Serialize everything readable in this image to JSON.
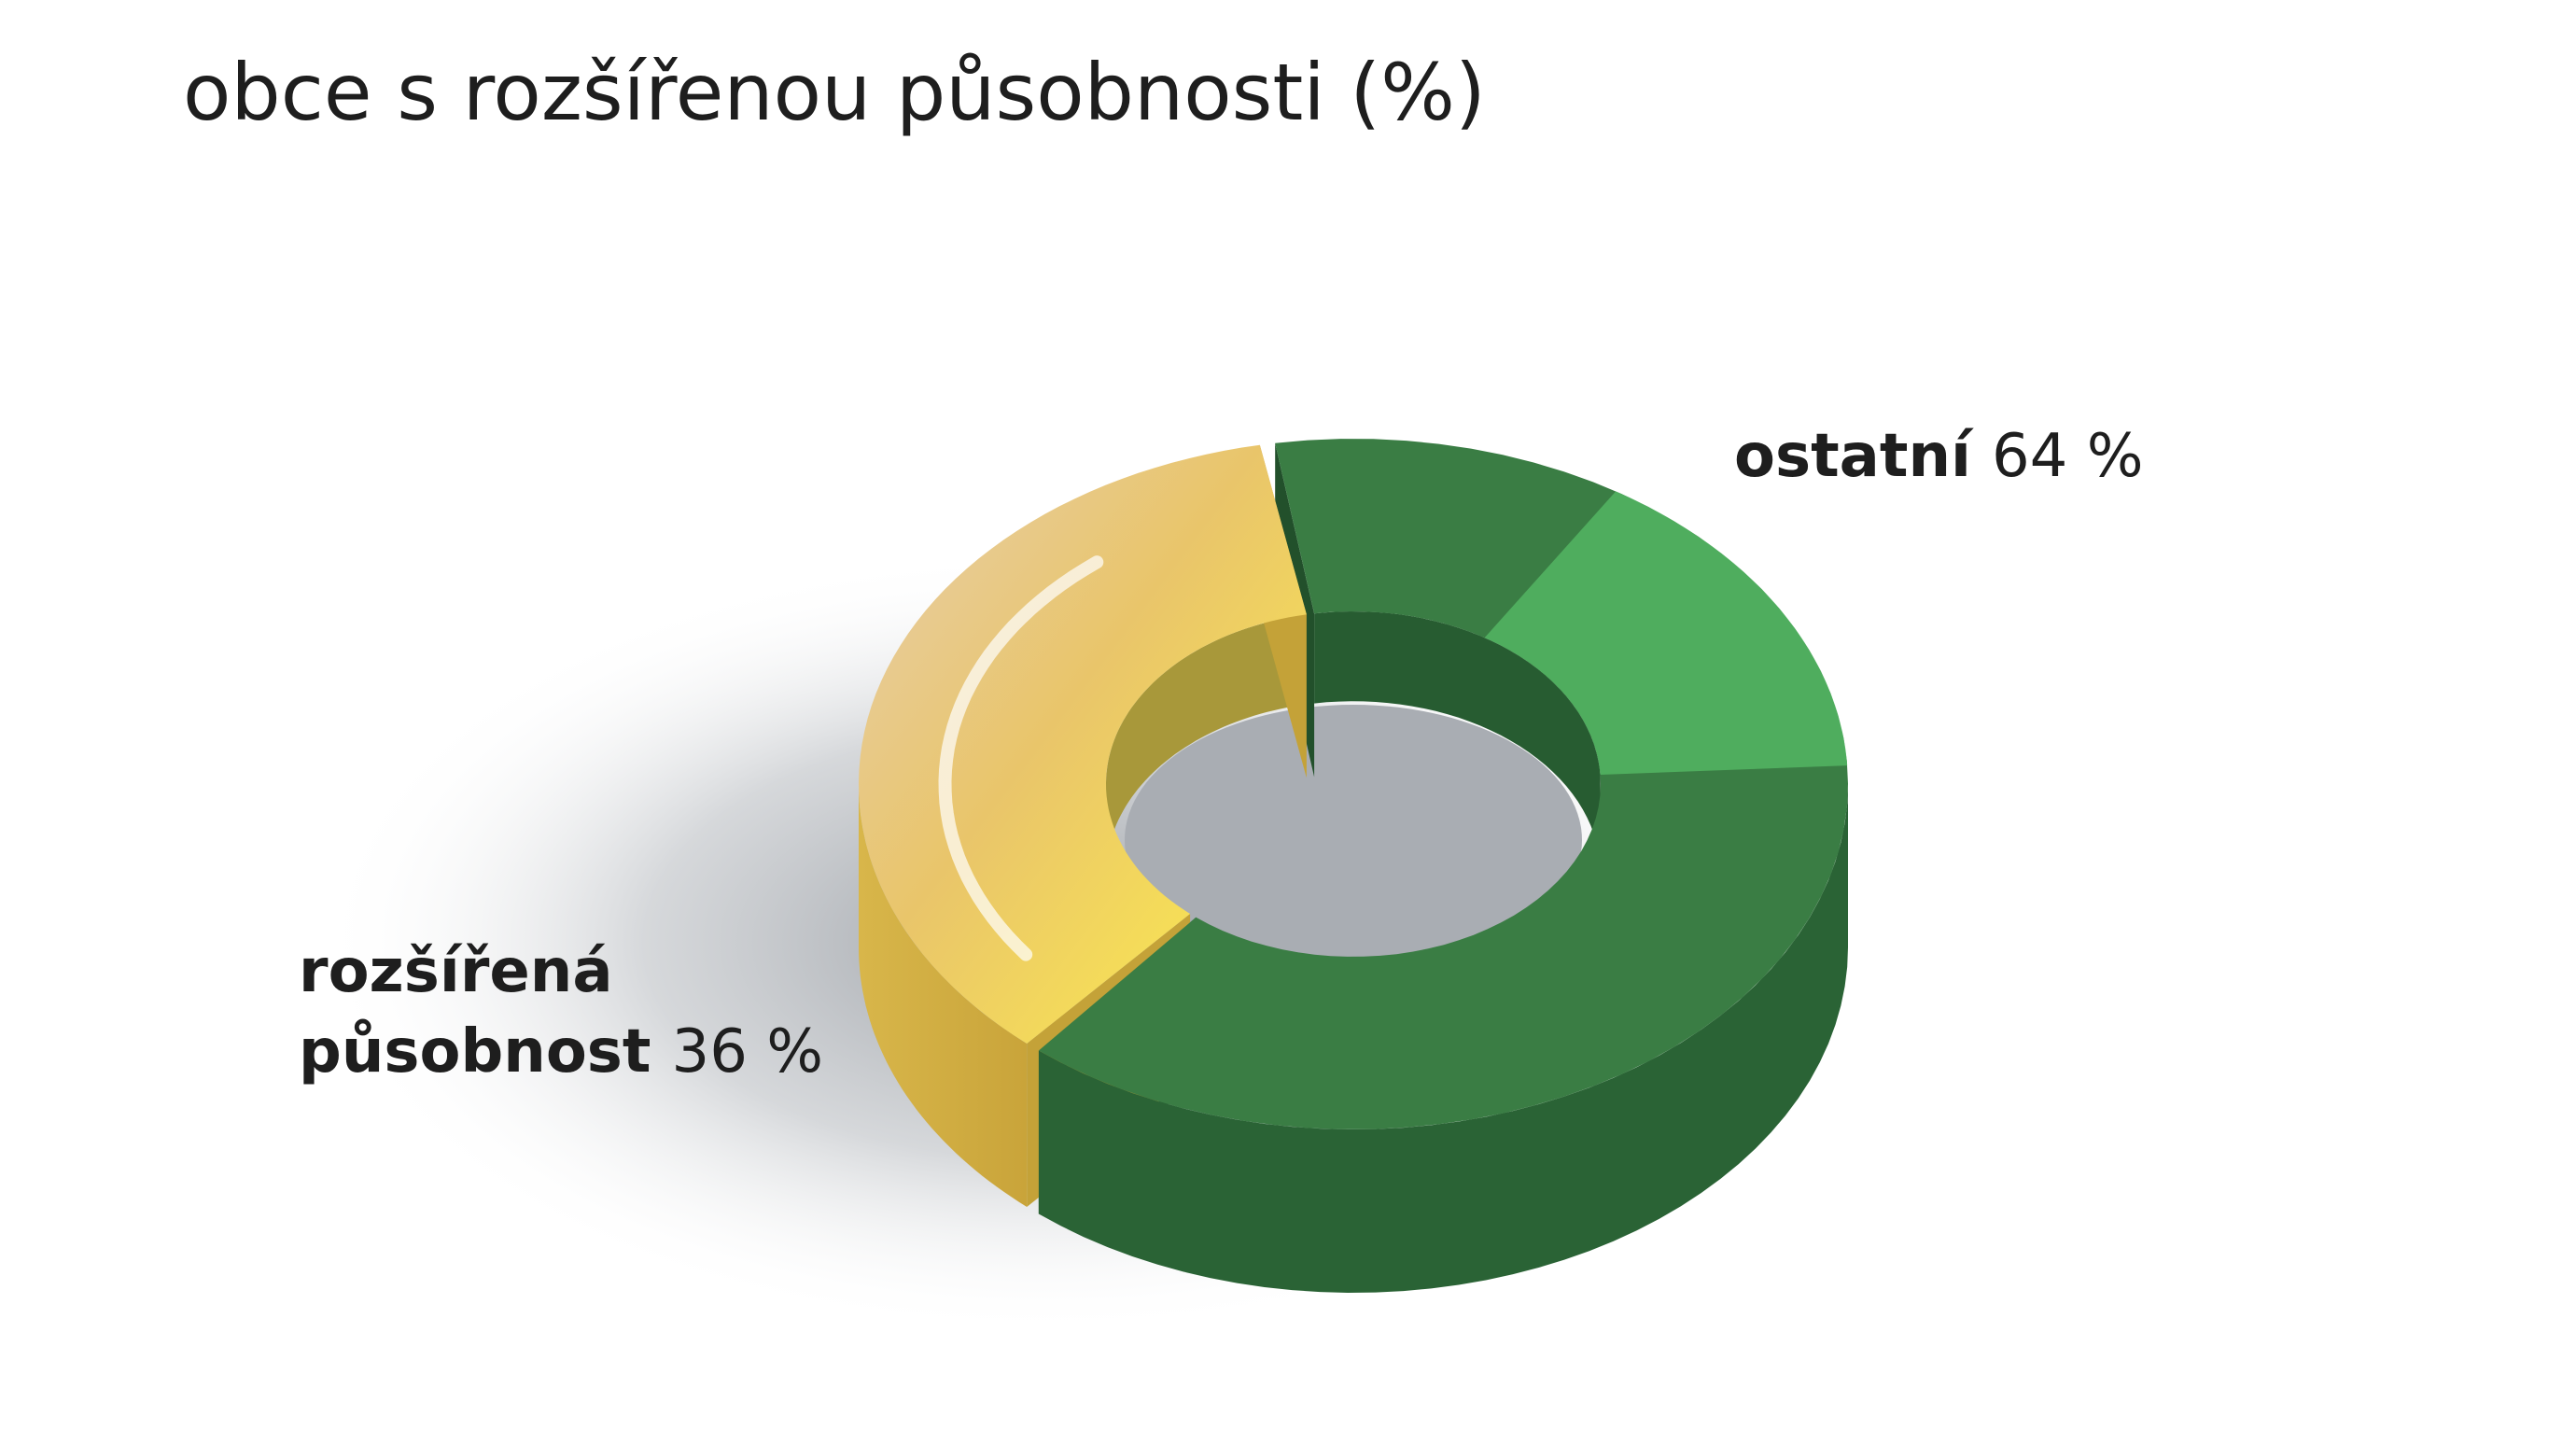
{
  "chart_data": {
    "type": "pie",
    "style": "3d-donut",
    "title": "obce s rozšířenou působnosti (%)",
    "unit": "%",
    "slices": [
      {
        "label": "ostatní",
        "value": 64,
        "value_text": "64 %",
        "color": "#3a7d44"
      },
      {
        "label_lines": [
          "rozšířená",
          "působnost"
        ],
        "value": 36,
        "value_text": "36 %",
        "color": "#e9bf4a"
      }
    ],
    "legend": "none"
  }
}
